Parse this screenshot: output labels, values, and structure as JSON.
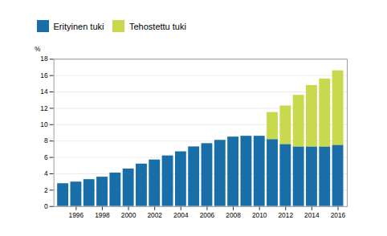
{
  "chart_data": {
    "type": "bar",
    "stacked": true,
    "x": [
      1995,
      1996,
      1997,
      1998,
      1999,
      2000,
      2001,
      2002,
      2003,
      2004,
      2005,
      2006,
      2007,
      2008,
      2009,
      2010,
      2011,
      2012,
      2013,
      2014,
      2015,
      2016
    ],
    "series": [
      {
        "name": "Erityinen tuki",
        "color": "#1a6ea8",
        "values": [
          2.8,
          3.0,
          3.3,
          3.6,
          4.1,
          4.6,
          5.2,
          5.7,
          6.2,
          6.7,
          7.3,
          7.7,
          8.1,
          8.5,
          8.6,
          8.6,
          8.2,
          7.6,
          7.3,
          7.3,
          7.3,
          7.5
        ]
      },
      {
        "name": "Tehostettu tuki",
        "color": "#c8d94e",
        "values": [
          0,
          0,
          0,
          0,
          0,
          0,
          0,
          0,
          0,
          0,
          0,
          0,
          0,
          0,
          0,
          0,
          3.3,
          4.7,
          6.3,
          7.5,
          8.3,
          9.1
        ]
      }
    ],
    "xlim": [
      1994.3,
      2016.7
    ],
    "xticks": [
      1996,
      1998,
      2000,
      2002,
      2004,
      2006,
      2008,
      2010,
      2012,
      2014,
      2016
    ],
    "ylim": [
      0,
      18
    ],
    "yticks": [
      0,
      2,
      4,
      6,
      8,
      10,
      12,
      14,
      16,
      18
    ],
    "ylabel": "%",
    "grid": true,
    "legend": "upper left"
  }
}
